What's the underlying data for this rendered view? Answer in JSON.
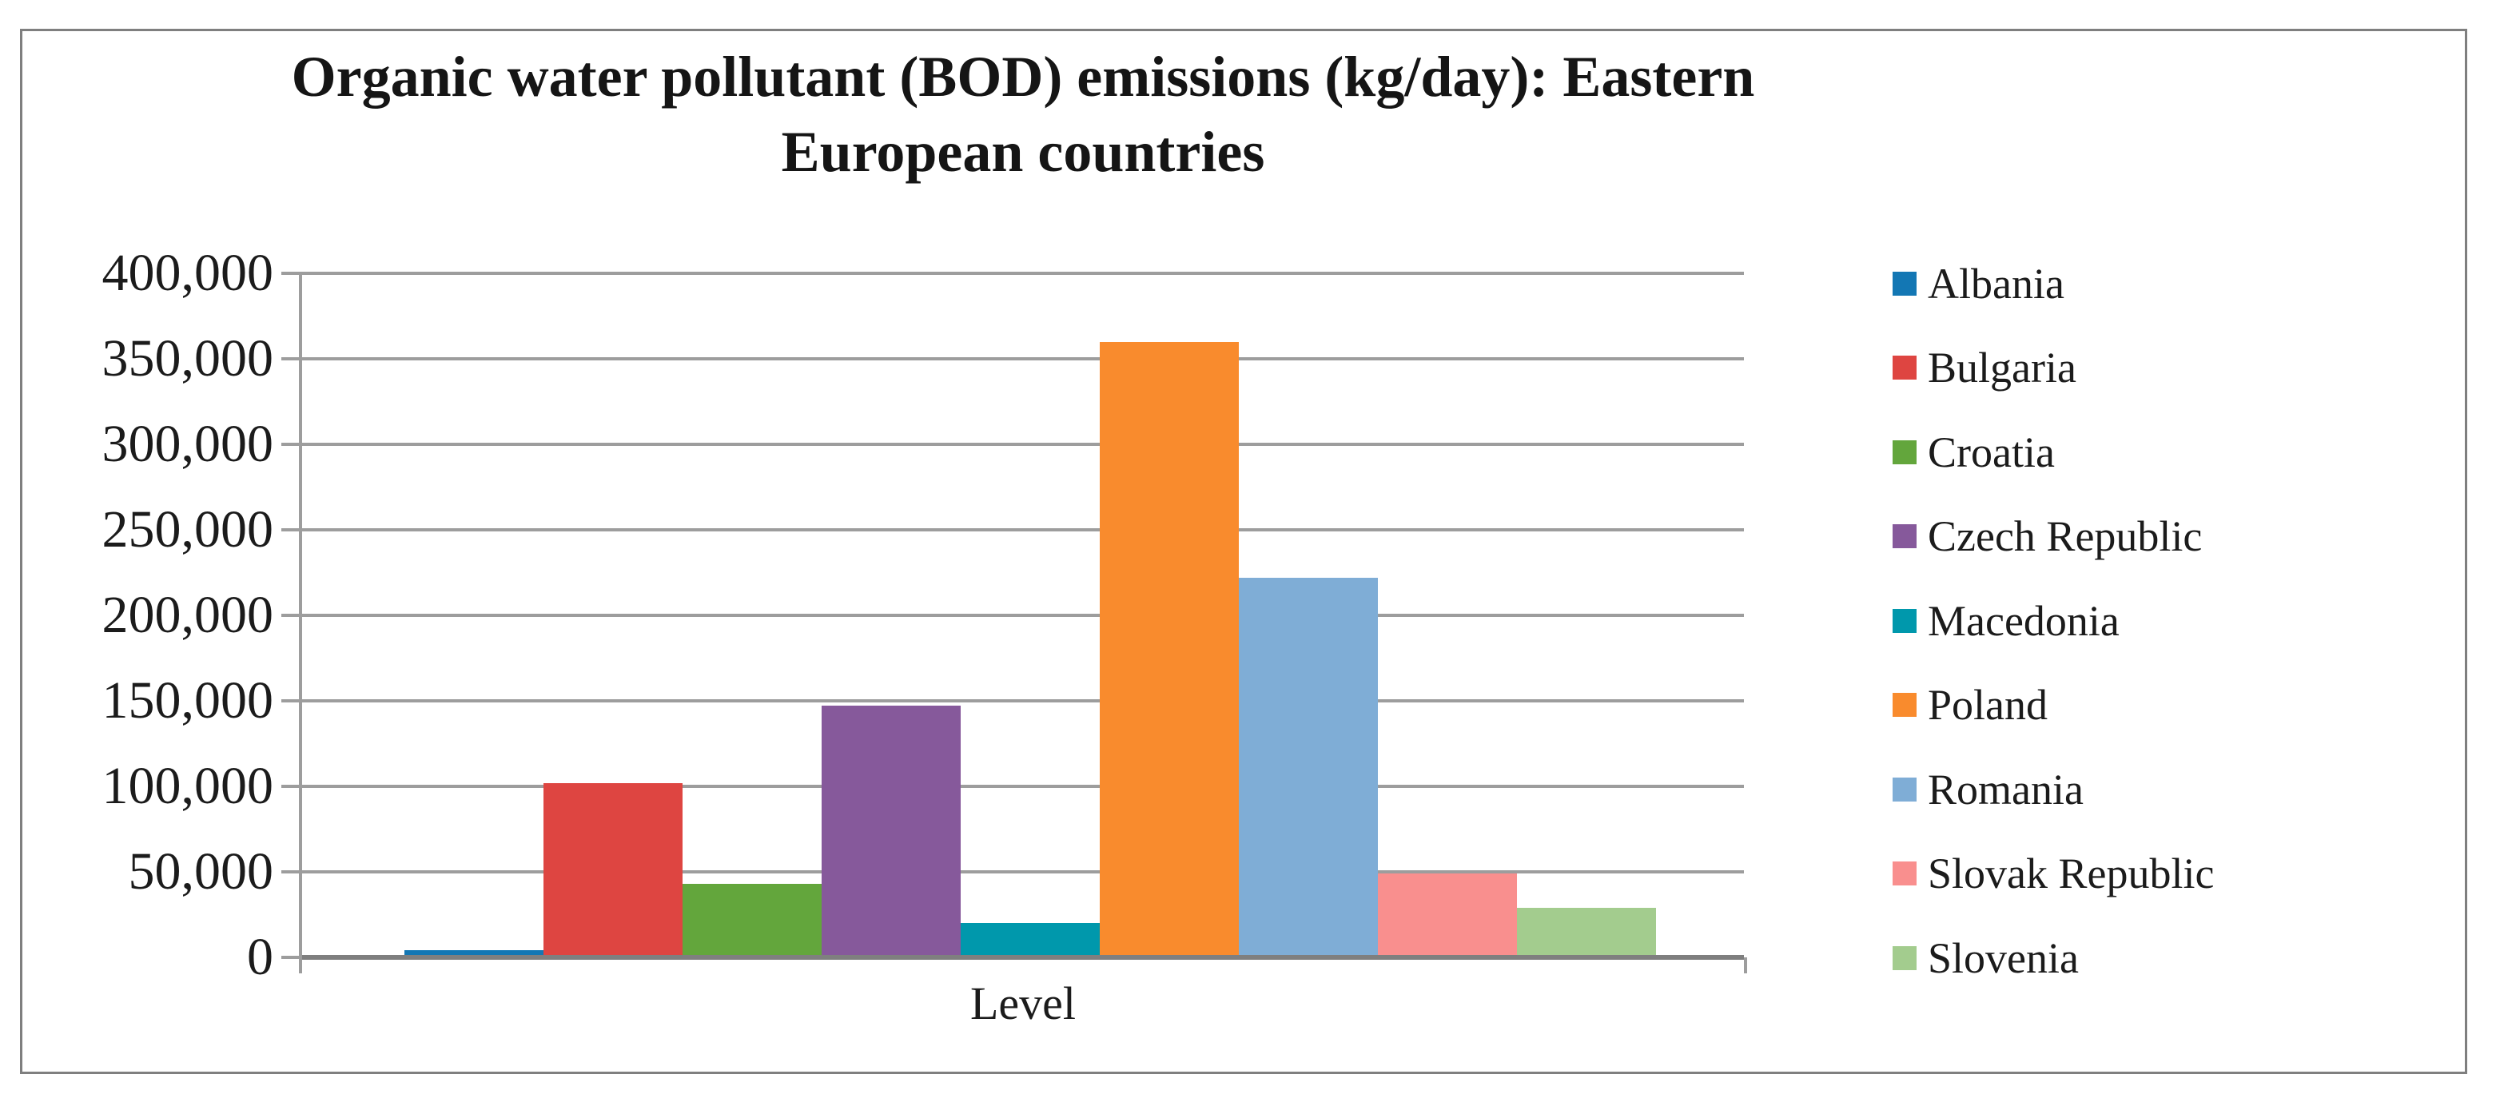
{
  "figure": {
    "title_lines": [
      "Organic water pollutant (BOD) emissions (kg/day): Eastern",
      "European countries"
    ]
  },
  "chart_data": {
    "type": "bar",
    "title": "Organic water pollutant (BOD) emissions (kg/day): Eastern European countries",
    "xlabel": "Level",
    "ylabel": "",
    "ylim": [
      0,
      400000
    ],
    "y_tick_interval": 50000,
    "y_ticks": [
      {
        "value": 400000,
        "label": "400,000"
      },
      {
        "value": 350000,
        "label": "350,000"
      },
      {
        "value": 300000,
        "label": "300,000"
      },
      {
        "value": 250000,
        "label": "250,000"
      },
      {
        "value": 200000,
        "label": "200,000"
      },
      {
        "value": 150000,
        "label": "150,000"
      },
      {
        "value": 100000,
        "label": "100,000"
      },
      {
        "value": 50000,
        "label": "50,000"
      },
      {
        "value": 0,
        "label": "0"
      }
    ],
    "grid": true,
    "legend_position": "right",
    "categories": [
      "Level"
    ],
    "series": [
      {
        "name": "Albania",
        "value": 4000,
        "color": "#1377b4"
      },
      {
        "name": "Bulgaria",
        "value": 102000,
        "color": "#de4541"
      },
      {
        "name": "Croatia",
        "value": 43000,
        "color": "#63a63c"
      },
      {
        "name": "Czech Republic",
        "value": 147000,
        "color": "#86599b"
      },
      {
        "name": "Macedonia",
        "value": 20000,
        "color": "#0098ac"
      },
      {
        "name": "Poland",
        "value": 360000,
        "color": "#f98b2d"
      },
      {
        "name": "Romania",
        "value": 222000,
        "color": "#7fadd6"
      },
      {
        "name": "Slovak Republic",
        "value": 49000,
        "color": "#f98f8e"
      },
      {
        "name": "Slovenia",
        "value": 29000,
        "color": "#a3cc8e"
      }
    ],
    "axis_colors": {
      "gridline": "#9d9d9d",
      "baseline": "#7f7f7f",
      "frame_border": "#7f7f7f"
    }
  }
}
